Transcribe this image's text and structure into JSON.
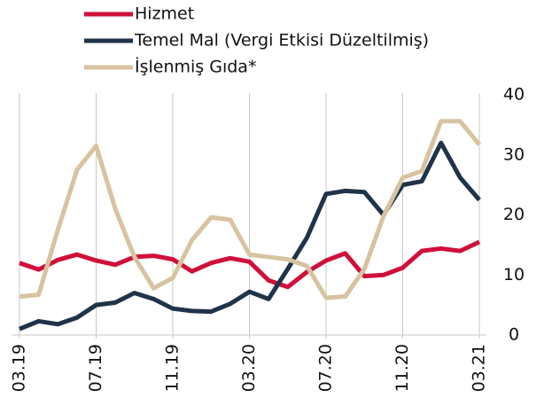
{
  "chart_data": {
    "type": "line",
    "categories": [
      "03.19",
      null,
      null,
      null,
      "07.19",
      null,
      null,
      null,
      "11.19",
      null,
      null,
      null,
      "03.20",
      null,
      null,
      null,
      "07.20",
      null,
      null,
      null,
      "11.20",
      null,
      null,
      null,
      "03.21"
    ],
    "series": [
      {
        "name": "Hizmet",
        "color": "#d0103a",
        "values": [
          12,
          10.9,
          12.5,
          13.4,
          12.4,
          11.7,
          13,
          13.2,
          12.6,
          10.6,
          12,
          12.8,
          12.2,
          9.1,
          8,
          10.5,
          12.4,
          13.6,
          9.8,
          10,
          11.2,
          14,
          14.4,
          14,
          15.5
        ]
      },
      {
        "name": "Temel Mal (Vergi Etkisi Düzeltilmiş)",
        "color": "#1f3349",
        "values": [
          1,
          2.3,
          1.8,
          2.9,
          5,
          5.4,
          7,
          6,
          4.4,
          4,
          3.9,
          5.2,
          7.2,
          6,
          11,
          16.2,
          23.5,
          24,
          23.8,
          20,
          25,
          25.6,
          32,
          26.2,
          22.5
        ]
      },
      {
        "name": "İşlenmiş Gıda*",
        "color": "#d7c3a0",
        "values": [
          6.4,
          6.7,
          17.5,
          27.5,
          31.5,
          21,
          13,
          7.8,
          9.5,
          15.8,
          19.6,
          19.2,
          13.4,
          13,
          12.6,
          11.5,
          6.2,
          6.4,
          11,
          19.8,
          26.2,
          27.3,
          35.6,
          35.6,
          31.7
        ]
      }
    ],
    "ylim": [
      0,
      40
    ],
    "yticks": [
      0,
      10,
      20,
      30,
      40
    ],
    "grid": true
  }
}
